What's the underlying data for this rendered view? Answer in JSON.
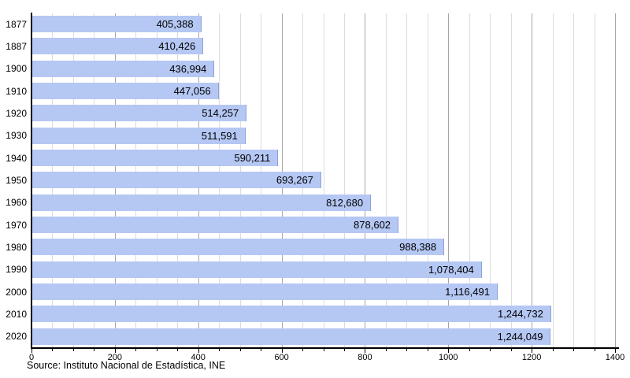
{
  "chart_data": {
    "type": "bar",
    "orientation": "horizontal",
    "title": "",
    "xlabel": "",
    "ylabel": "",
    "categories": [
      "1877",
      "1887",
      "1900",
      "1910",
      "1920",
      "1930",
      "1940",
      "1950",
      "1960",
      "1970",
      "1980",
      "1990",
      "2000",
      "2010",
      "2020"
    ],
    "values": [
      405388,
      410426,
      436994,
      447056,
      514257,
      511591,
      590211,
      693267,
      812680,
      878602,
      988388,
      1078404,
      1116491,
      1244732,
      1244049
    ],
    "value_labels": [
      "405,388",
      "410,426",
      "436,994",
      "447,056",
      "514,257",
      "511,591",
      "590,211",
      "693,267",
      "812,680",
      "878,602",
      "988,388",
      "1,078,404",
      "1,116,491",
      "1,244,732",
      "1,244,049"
    ],
    "x_axis": {
      "min": 0,
      "max": 1400,
      "major_tick_step": 200,
      "minor_tick_step": 50,
      "tick_labels": [
        "0",
        "200",
        "400",
        "600",
        "800",
        "1000",
        "1200",
        "1400"
      ],
      "value_scale": 1000
    },
    "grid": {
      "vertical": true,
      "horizontal": false
    },
    "legend": null,
    "value_label_position": "inside-end"
  },
  "footer": {
    "source_text": "Source: Instituto Nacional de Estadística, INE"
  },
  "colors": {
    "background": "#ffffff",
    "bar_fill": "#b5c7f3",
    "bar_edge": "#8ca3d8",
    "grid_minor": "#dcdcdc",
    "grid_major": "#a6a6a6",
    "axis": "#000000",
    "text": "#000000"
  }
}
